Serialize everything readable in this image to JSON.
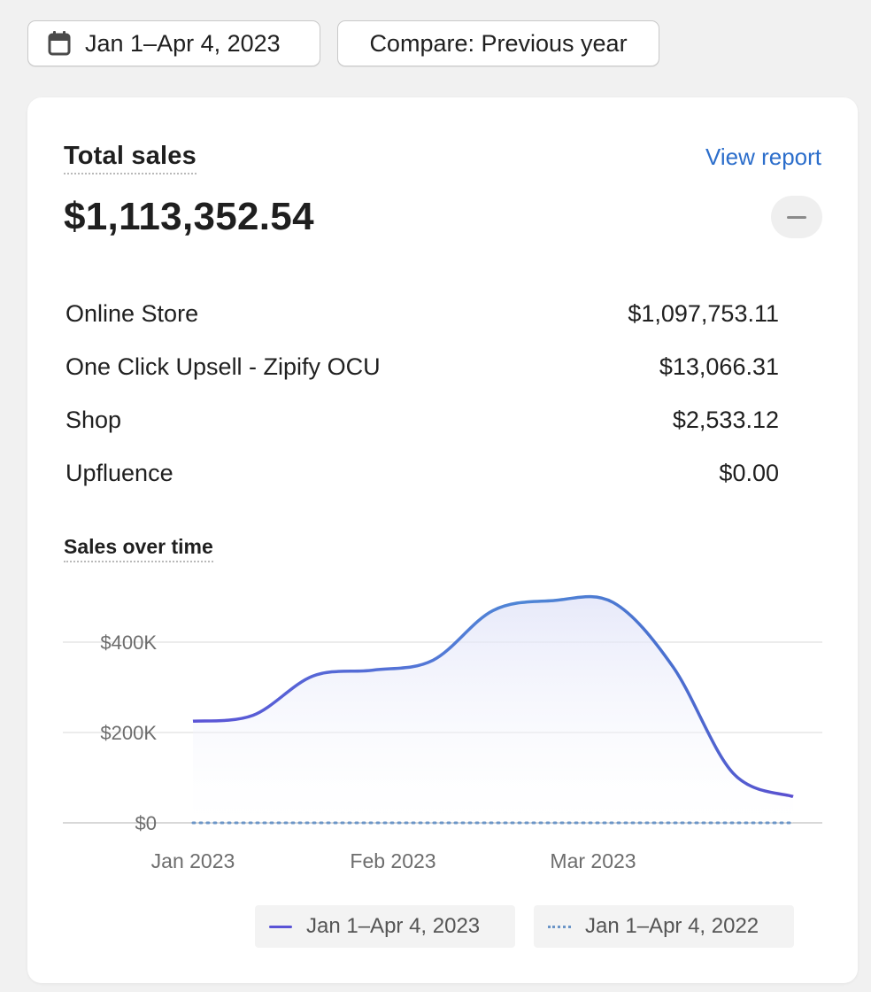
{
  "toolbar": {
    "date_range_label": "Jan 1–Apr 4, 2023",
    "compare_label": "Compare: Previous year"
  },
  "card": {
    "title": "Total sales",
    "view_report": "View report",
    "total": "$1,113,352.54",
    "channels": [
      {
        "name": "Online Store",
        "value": "$1,097,753.11"
      },
      {
        "name": "One Click Upsell - Zipify OCU",
        "value": "$13,066.31"
      },
      {
        "name": "Shop",
        "value": "$2,533.12"
      },
      {
        "name": "Upfluence",
        "value": "$0.00"
      }
    ],
    "chart_title": "Sales over time"
  },
  "colors": {
    "accent_link": "#2c6ecb",
    "series_current_start": "#5a53d6",
    "series_current_mid": "#4f86d6",
    "series_previous": "#6b95c7"
  },
  "chart_data": {
    "type": "area",
    "title": "Sales over time",
    "x": [
      "Jan 2023",
      "Jan 2023 +2w",
      "Feb 2023 -2w",
      "Feb 2023",
      "Feb 2023 +2w",
      "Mar 2023 -1w",
      "Mar 2023",
      "Mar 2023 +1w",
      "Mar 2023 +2w",
      "Mar 2023 +3w",
      "Apr 2023"
    ],
    "x_ticks": [
      "Jan 2023",
      "Feb 2023",
      "Mar 2023"
    ],
    "y_ticks": [
      "$0",
      "$200K",
      "$400K"
    ],
    "ylim": [
      0,
      500000
    ],
    "grid": true,
    "legend": "bottom",
    "series": [
      {
        "name": "Jan 1–Apr 4, 2023",
        "style": "solid",
        "values": [
          225000,
          238000,
          325000,
          338000,
          360000,
          470000,
          492000,
          488000,
          345000,
          110000,
          58000
        ]
      },
      {
        "name": "Jan 1–Apr 4, 2022",
        "style": "dotted",
        "values": [
          0,
          0,
          0,
          0,
          0,
          0,
          0,
          0,
          0,
          0,
          0
        ]
      }
    ]
  }
}
